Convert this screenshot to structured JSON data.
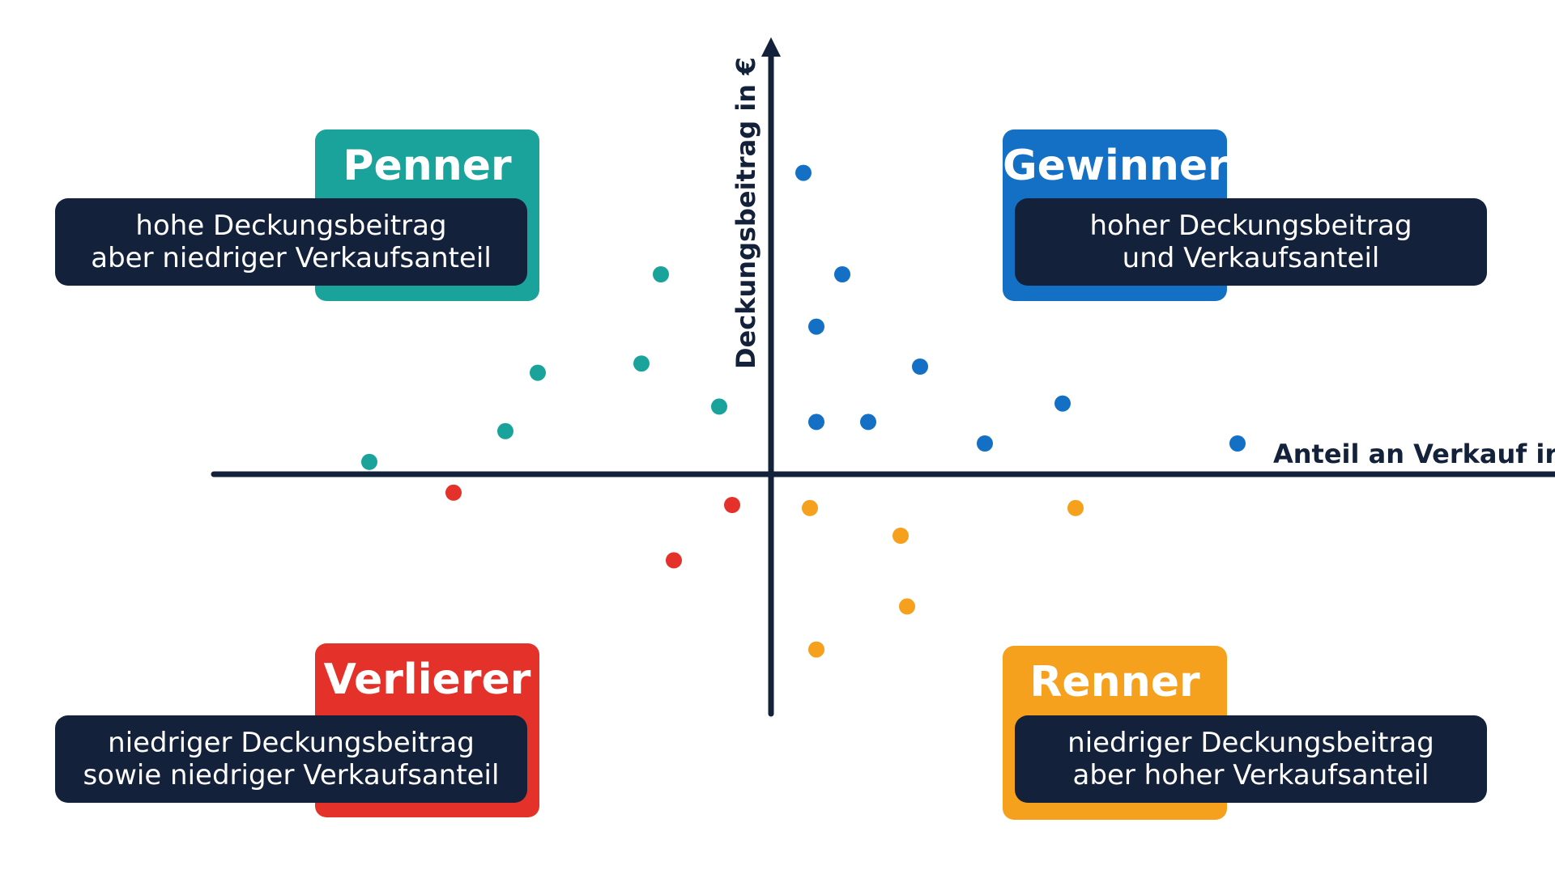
{
  "colors": {
    "navy": "#14213a",
    "teal": "#1aa39a",
    "blue": "#1470c4",
    "red": "#e4322b",
    "orange": "#f5a11d",
    "white": "#ffffff"
  },
  "axes": {
    "x_label": "Anteil an Verkauf ir",
    "y_label": "Deckungsbeitrag in €"
  },
  "quadrants": {
    "penner": {
      "title": "Penner",
      "line1": "hohe Deckungsbeitrag",
      "line2": "aber niedriger Verkaufsanteil",
      "color": "#1aa39a"
    },
    "gewinner": {
      "title": "Gewinner",
      "line1": "hoher Deckungsbeitrag",
      "line2": "und Verkaufsanteil",
      "color": "#1470c4"
    },
    "verlierer": {
      "title": "Verlierer",
      "line1": "niedriger Deckungsbeitrag",
      "line2": "sowie niedriger Verkaufsanteil",
      "color": "#e4322b"
    },
    "renner": {
      "title": "Renner",
      "line1": "niedriger Deckungsbeitrag",
      "line2": "aber hoher Verkaufsanteil",
      "color": "#f5a11d"
    }
  },
  "chart_data": {
    "type": "scatter",
    "xlabel": "Anteil an Verkauf ir",
    "ylabel": "Deckungsbeitrag in €",
    "xlim": [
      -10,
      10
    ],
    "ylim": [
      -10,
      10
    ],
    "grid": false,
    "series": [
      {
        "group": "penner",
        "color": "#1aa39a",
        "points": [
          [
            -6.2,
            0.4
          ],
          [
            -4.1,
            1.4
          ],
          [
            -3.6,
            3.3
          ],
          [
            -1.7,
            6.5
          ],
          [
            -2.0,
            3.6
          ],
          [
            -0.8,
            2.2
          ]
        ]
      },
      {
        "group": "gewinner",
        "color": "#1470c4",
        "points": [
          [
            0.5,
            9.8
          ],
          [
            1.1,
            6.5
          ],
          [
            0.7,
            4.8
          ],
          [
            2.3,
            3.5
          ],
          [
            0.7,
            1.7
          ],
          [
            1.5,
            1.7
          ],
          [
            3.3,
            1.0
          ],
          [
            4.5,
            2.3
          ],
          [
            7.2,
            1.0
          ]
        ]
      },
      {
        "group": "verlierer",
        "color": "#e4322b",
        "points": [
          [
            -4.9,
            -0.6
          ],
          [
            -0.6,
            -1.0
          ],
          [
            -1.5,
            -2.8
          ]
        ]
      },
      {
        "group": "renner",
        "color": "#f5a11d",
        "points": [
          [
            0.6,
            -1.1
          ],
          [
            2.0,
            -2.0
          ],
          [
            4.7,
            -1.1
          ],
          [
            2.1,
            -4.3
          ],
          [
            0.7,
            -5.7
          ]
        ]
      }
    ]
  }
}
